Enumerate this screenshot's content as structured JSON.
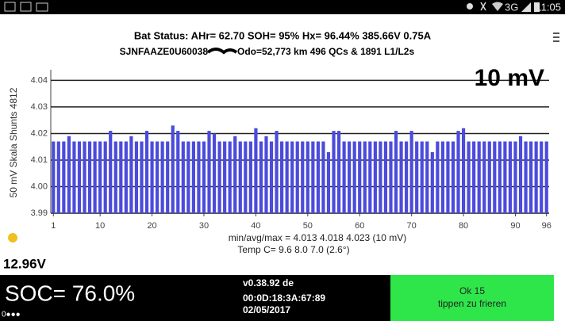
{
  "status_bar": {
    "network": "3G",
    "time": "11:05"
  },
  "header": {
    "line1": "Bat Status:  AHr= 62.70  SOH= 95%  Hx= 96.44%  385.66V 0.75A",
    "vin": "SJNFAAZE0U60038",
    "odo": "Odo=52,773 km  496 QCs & 1891 L1/L2s"
  },
  "chart_data": {
    "type": "bar",
    "annotation": "10 mV",
    "ylabel": "50 mV Skala  Shunts 4812",
    "color": "#4b4bdc",
    "grid": true,
    "x": [
      1,
      2,
      3,
      4,
      5,
      6,
      7,
      8,
      9,
      10,
      11,
      12,
      13,
      14,
      15,
      16,
      17,
      18,
      19,
      20,
      21,
      22,
      23,
      24,
      25,
      26,
      27,
      28,
      29,
      30,
      31,
      32,
      33,
      34,
      35,
      36,
      37,
      38,
      39,
      40,
      41,
      42,
      43,
      44,
      45,
      46,
      47,
      48,
      49,
      50,
      51,
      52,
      53,
      54,
      55,
      56,
      57,
      58,
      59,
      60,
      61,
      62,
      63,
      64,
      65,
      66,
      67,
      68,
      69,
      70,
      71,
      72,
      73,
      74,
      75,
      76,
      77,
      78,
      79,
      80,
      81,
      82,
      83,
      84,
      85,
      86,
      87,
      88,
      89,
      90,
      91,
      92,
      93,
      94,
      95,
      96
    ],
    "values": [
      4.017,
      4.017,
      4.017,
      4.019,
      4.017,
      4.017,
      4.017,
      4.017,
      4.017,
      4.017,
      4.017,
      4.021,
      4.017,
      4.017,
      4.017,
      4.019,
      4.017,
      4.017,
      4.021,
      4.017,
      4.017,
      4.017,
      4.017,
      4.023,
      4.021,
      4.017,
      4.017,
      4.017,
      4.017,
      4.017,
      4.021,
      4.02,
      4.017,
      4.017,
      4.017,
      4.019,
      4.017,
      4.017,
      4.017,
      4.022,
      4.017,
      4.019,
      4.017,
      4.021,
      4.017,
      4.017,
      4.017,
      4.017,
      4.017,
      4.017,
      4.017,
      4.017,
      4.017,
      4.013,
      4.021,
      4.021,
      4.017,
      4.017,
      4.017,
      4.017,
      4.017,
      4.017,
      4.017,
      4.017,
      4.017,
      4.017,
      4.021,
      4.017,
      4.017,
      4.021,
      4.017,
      4.017,
      4.017,
      4.013,
      4.017,
      4.017,
      4.017,
      4.017,
      4.021,
      4.022,
      4.017,
      4.017,
      4.017,
      4.017,
      4.017,
      4.017,
      4.017,
      4.017,
      4.017,
      4.017,
      4.019,
      4.017,
      4.017,
      4.017,
      4.017,
      4.017
    ],
    "xlim": [
      0.5,
      96.5
    ],
    "xticks": [
      1,
      10,
      20,
      30,
      40,
      50,
      60,
      70,
      80,
      90,
      96
    ],
    "ylim": [
      3.99,
      4.044
    ],
    "yticks": [
      3.99,
      {
        "value": 4,
        "label": "4.00"
      },
      4.01,
      4.02,
      4.03,
      4.04
    ]
  },
  "readout": {
    "stats": "min/avg/max = 4.013 4.018 4.023  (10 mV)",
    "temp": "Temp C= 9.6  8.0  7.0  (2.6°)",
    "voltage": "12.96V"
  },
  "footer": {
    "soc": "SOC= 76.0%",
    "dots": "0●●●",
    "version": "v0.38.92 de",
    "mac": "00:0D:18:3A:67:89",
    "date": "02/05/2017",
    "button_title": "Ok 15",
    "button_hint": "tippen zu frieren"
  }
}
